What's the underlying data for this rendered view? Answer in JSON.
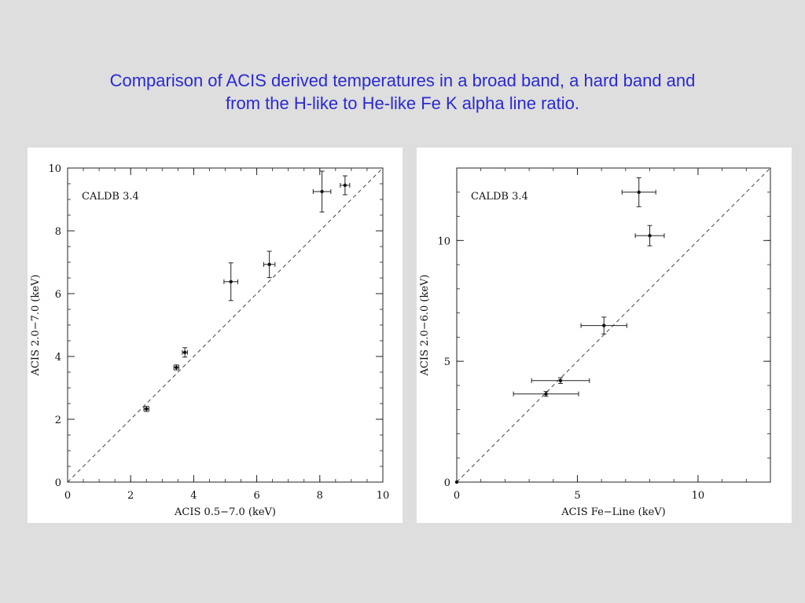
{
  "slide": {
    "title_line1": "Comparison of ACIS derived temperatures in a broad band, a hard band and",
    "title_line2": "from the H-like to He-like Fe K alpha line ratio."
  },
  "colors": {
    "title": "#2a2ad0",
    "background": "#dedede",
    "panel": "#ffffff"
  },
  "chart_data": [
    {
      "type": "scatter",
      "annotation": "CALDB 3.4",
      "xlabel": "ACIS 0.5−7.0 (keV)",
      "ylabel": "ACIS 2.0−7.0 (keV)",
      "xlim": [
        0,
        10
      ],
      "ylim": [
        0,
        10
      ],
      "xticks": [
        0,
        2,
        4,
        6,
        8,
        10
      ],
      "yticks": [
        0,
        2,
        4,
        6,
        8,
        10
      ],
      "reference_line": "y = x (dashed)",
      "grid": false,
      "points": [
        {
          "x": 2.5,
          "y": 2.33,
          "xerr": 0.08,
          "yerr": 0.08
        },
        {
          "x": 3.45,
          "y": 3.65,
          "xerr": 0.08,
          "yerr": 0.08
        },
        {
          "x": 3.72,
          "y": 4.13,
          "xerr": 0.08,
          "yerr": 0.15
        },
        {
          "x": 5.18,
          "y": 6.38,
          "xerr": 0.22,
          "yerr": 0.6
        },
        {
          "x": 6.4,
          "y": 6.93,
          "xerr": 0.18,
          "yerr": 0.42
        },
        {
          "x": 8.07,
          "y": 9.25,
          "xerr": 0.28,
          "yerr": 0.65
        },
        {
          "x": 8.8,
          "y": 9.45,
          "xerr": 0.15,
          "yerr": 0.3
        }
      ]
    },
    {
      "type": "scatter",
      "annotation": "CALDB 3.4",
      "xlabel": "ACIS Fe−Line (keV)",
      "ylabel": "ACIS 2.0−6.0 (keV)",
      "xlim": [
        0,
        13
      ],
      "ylim": [
        0,
        13
      ],
      "xticks": [
        0,
        5,
        10
      ],
      "yticks": [
        0,
        5,
        10
      ],
      "reference_line": "y = x (dashed)",
      "grid": false,
      "points": [
        {
          "x": 0,
          "y": 0,
          "xerr": 0,
          "yerr": 0
        },
        {
          "x": 3.7,
          "y": 3.65,
          "xerr": 1.35,
          "yerr": 0.1
        },
        {
          "x": 4.3,
          "y": 4.2,
          "xerr": 1.2,
          "yerr": 0.12
        },
        {
          "x": 6.1,
          "y": 6.48,
          "xerr": 0.95,
          "yerr": 0.35
        },
        {
          "x": 7.55,
          "y": 12.0,
          "xerr": 0.7,
          "yerr": 0.6
        },
        {
          "x": 8.0,
          "y": 10.2,
          "xerr": 0.6,
          "yerr": 0.42
        }
      ]
    }
  ]
}
